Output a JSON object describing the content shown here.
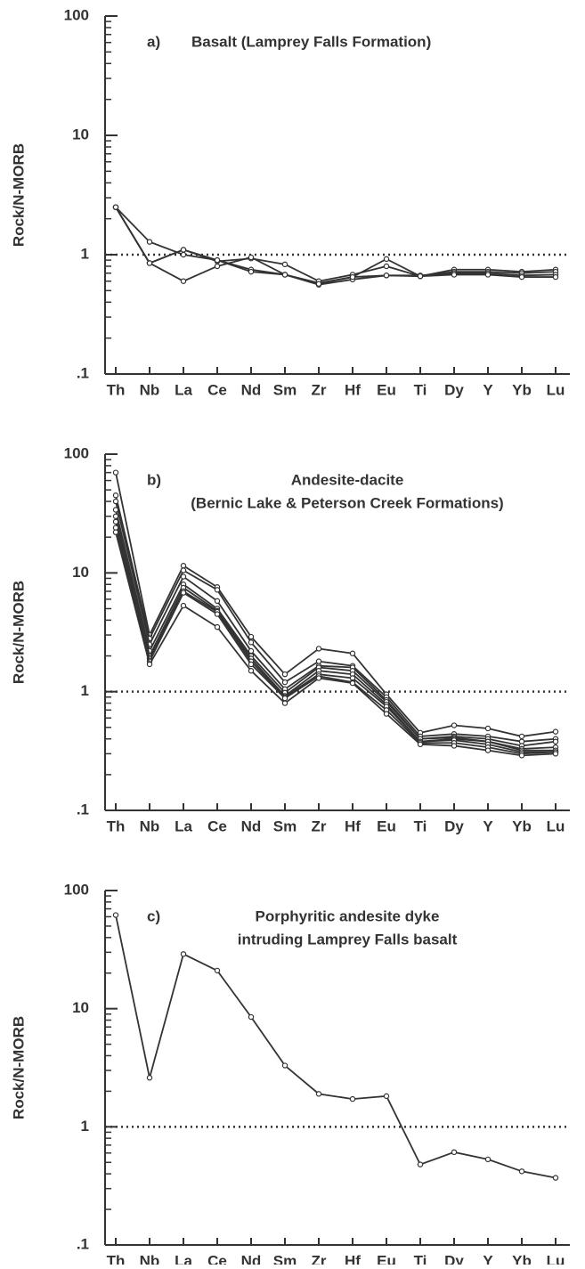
{
  "chart_data": [
    {
      "type": "line",
      "panel_label": "a)",
      "title": [
        "Basalt (Lamprey Falls Formation)"
      ],
      "ylabel": "Rock/N-MORB",
      "log_scale": true,
      "color": "#333333",
      "categories": [
        "Th",
        "Nb",
        "La",
        "Ce",
        "Nd",
        "Sm",
        "Zr",
        "Hf",
        "Eu",
        "Ti",
        "Dy",
        "Y",
        "Yb",
        "Lu"
      ],
      "ylim": [
        0.1,
        100
      ],
      "yticks": [
        100,
        10,
        1,
        {
          "value": 0.1,
          "label": ".1"
        }
      ],
      "reference_line": 1,
      "series": [
        {
          "values": [
            2.5,
            1.28,
            1.0,
            0.9,
            0.75,
            0.68,
            0.58,
            0.65,
            0.92,
            0.66,
            0.75,
            0.75,
            0.72,
            0.75
          ]
        },
        {
          "values": [
            2.5,
            0.85,
            1.1,
            0.88,
            0.93,
            0.83,
            0.6,
            0.68,
            0.8,
            0.66,
            0.72,
            0.72,
            0.7,
            0.72
          ]
        },
        {
          "values": [
            2.5,
            0.85,
            0.6,
            0.8,
            0.95,
            0.68,
            0.56,
            0.62,
            0.67,
            0.67,
            0.7,
            0.7,
            0.67,
            0.68
          ]
        },
        {
          "values": [
            2.5,
            0.85,
            1.1,
            0.9,
            0.72,
            0.68,
            0.57,
            0.65,
            0.67,
            0.66,
            0.68,
            0.68,
            0.65,
            0.65
          ]
        }
      ]
    },
    {
      "type": "line",
      "panel_label": "b)",
      "title": [
        "Andesite-dacite",
        "(Bernic Lake & Peterson Creek Formations)"
      ],
      "ylabel": "Rock/N-MORB",
      "log_scale": true,
      "color": "#333333",
      "categories": [
        "Th",
        "Nb",
        "La",
        "Ce",
        "Nd",
        "Sm",
        "Zr",
        "Hf",
        "Eu",
        "Ti",
        "Dy",
        "Y",
        "Yb",
        "Lu"
      ],
      "ylim": [
        0.1,
        100
      ],
      "yticks": [
        100,
        10,
        1,
        {
          "value": 0.1,
          "label": ".1"
        }
      ],
      "reference_line": 1,
      "series": [
        {
          "values": [
            70,
            3.0,
            11.5,
            7.6,
            2.9,
            1.4,
            2.3,
            2.1,
            0.95,
            0.45,
            0.52,
            0.49,
            0.42,
            0.46
          ]
        },
        {
          "values": [
            45,
            2.8,
            10.5,
            7.2,
            2.6,
            1.2,
            1.8,
            1.65,
            0.9,
            0.42,
            0.44,
            0.42,
            0.38,
            0.4
          ]
        },
        {
          "values": [
            40,
            2.5,
            9.3,
            5.8,
            2.2,
            1.05,
            1.65,
            1.6,
            0.85,
            0.4,
            0.42,
            0.4,
            0.35,
            0.38
          ]
        },
        {
          "values": [
            34,
            2.2,
            8,
            5.0,
            2.0,
            0.98,
            1.6,
            1.5,
            0.82,
            0.4,
            0.41,
            0.38,
            0.33,
            0.34
          ]
        },
        {
          "values": [
            30,
            2.0,
            7.5,
            4.8,
            1.9,
            0.92,
            1.5,
            1.4,
            0.78,
            0.38,
            0.4,
            0.38,
            0.32,
            0.32
          ]
        },
        {
          "values": [
            27,
            1.9,
            7,
            4.7,
            1.8,
            0.9,
            1.4,
            1.3,
            0.75,
            0.38,
            0.39,
            0.36,
            0.31,
            0.31
          ]
        },
        {
          "values": [
            24,
            1.8,
            6.8,
            4.5,
            1.7,
            0.88,
            1.35,
            1.2,
            0.7,
            0.37,
            0.37,
            0.34,
            0.3,
            0.31
          ]
        },
        {
          "values": [
            22,
            1.7,
            5.3,
            3.5,
            1.5,
            0.8,
            1.3,
            1.18,
            0.65,
            0.36,
            0.35,
            0.32,
            0.29,
            0.3
          ]
        }
      ]
    },
    {
      "type": "line",
      "panel_label": "c)",
      "title": [
        "Porphyritic andesite dyke",
        "intruding Lamprey Falls basalt"
      ],
      "ylabel": "Rock/N-MORB",
      "log_scale": true,
      "color": "#333333",
      "categories": [
        "Th",
        "Nb",
        "La",
        "Ce",
        "Nd",
        "Sm",
        "Zr",
        "Hf",
        "Eu",
        "Ti",
        "Dy",
        "Y",
        "Yb",
        "Lu"
      ],
      "ylim": [
        0.1,
        100
      ],
      "yticks": [
        100,
        10,
        1,
        {
          "value": 0.1,
          "label": ".1"
        }
      ],
      "reference_line": 1,
      "series": [
        {
          "values": [
            62,
            2.6,
            29,
            21,
            8.5,
            3.3,
            1.9,
            1.72,
            1.82,
            0.48,
            0.61,
            0.53,
            0.42,
            0.37
          ]
        }
      ]
    }
  ]
}
